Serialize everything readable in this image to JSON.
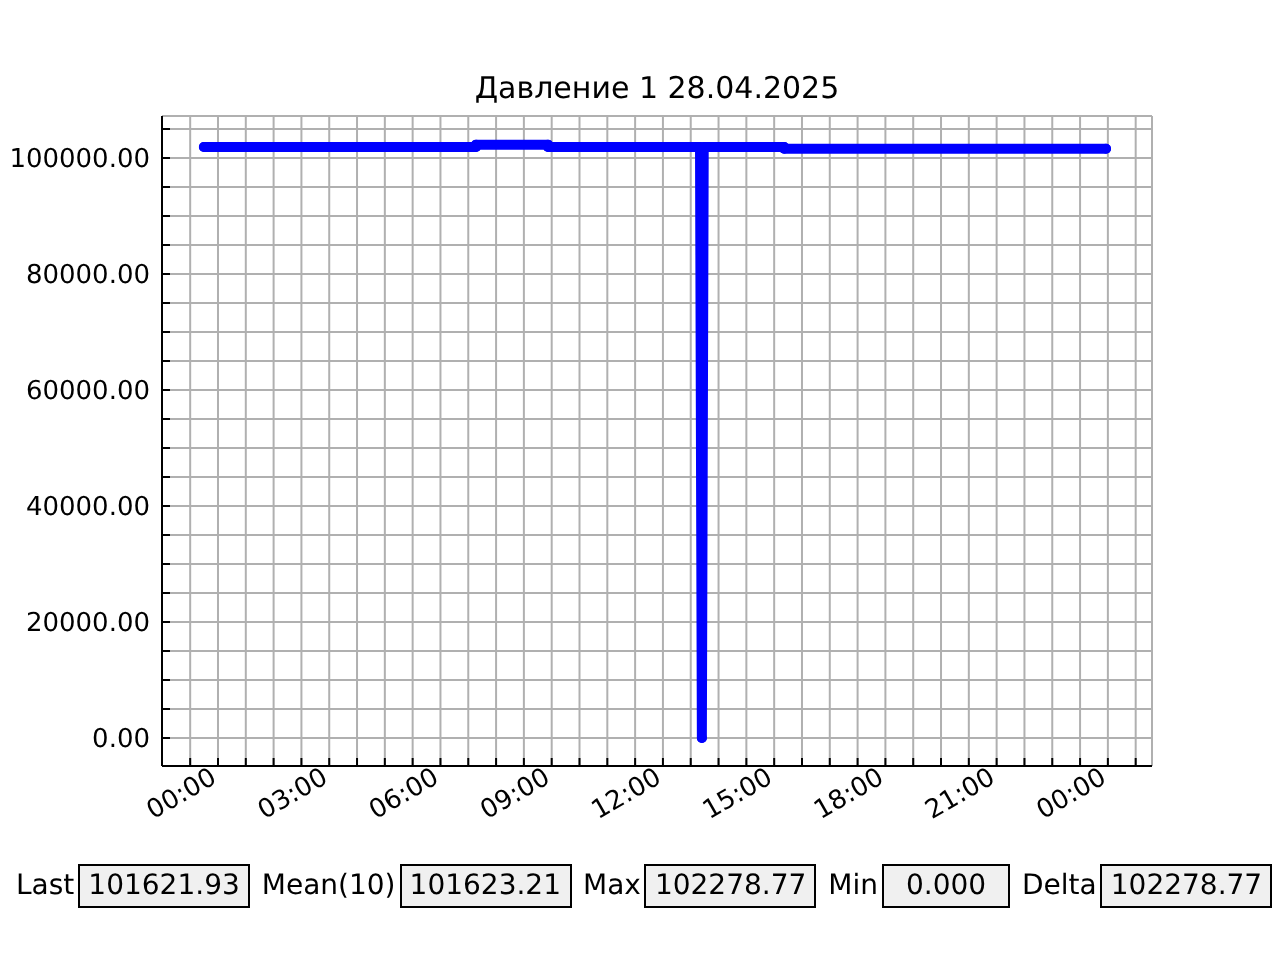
{
  "chart_data": {
    "type": "line",
    "title": "Давление 1 28.04.2025",
    "x": [
      -0.38,
      6.96,
      6.96,
      8.9,
      8.9,
      13.0,
      13.05,
      13.1,
      15.27,
      15.27,
      23.95
    ],
    "series": [
      {
        "color": "#0000ff",
        "values": [
          101900,
          101900,
          102300,
          102300,
          101900,
          101900,
          0,
          101900,
          101900,
          101600,
          101600
        ]
      }
    ],
    "xlim": [
      -1.51,
      25.19
    ],
    "xticks": [
      {
        "value": -0.75,
        "label": null
      },
      {
        "value": 0,
        "label": "00:00"
      },
      {
        "value": 0.75,
        "label": null
      },
      {
        "value": 1.5,
        "label": null
      },
      {
        "value": 2.25,
        "label": null
      },
      {
        "value": 3,
        "label": "03:00"
      },
      {
        "value": 3.75,
        "label": null
      },
      {
        "value": 4.5,
        "label": null
      },
      {
        "value": 5.25,
        "label": null
      },
      {
        "value": 6,
        "label": "06:00"
      },
      {
        "value": 6.75,
        "label": null
      },
      {
        "value": 7.5,
        "label": null
      },
      {
        "value": 8.25,
        "label": null
      },
      {
        "value": 9,
        "label": "09:00"
      },
      {
        "value": 9.75,
        "label": null
      },
      {
        "value": 10.5,
        "label": null
      },
      {
        "value": 11.25,
        "label": null
      },
      {
        "value": 12,
        "label": "12:00"
      },
      {
        "value": 12.75,
        "label": null
      },
      {
        "value": 13.5,
        "label": null
      },
      {
        "value": 14.25,
        "label": null
      },
      {
        "value": 15,
        "label": "15:00"
      },
      {
        "value": 15.75,
        "label": null
      },
      {
        "value": 16.5,
        "label": null
      },
      {
        "value": 17.25,
        "label": null
      },
      {
        "value": 18,
        "label": "18:00"
      },
      {
        "value": 18.75,
        "label": null
      },
      {
        "value": 19.5,
        "label": null
      },
      {
        "value": 20.25,
        "label": null
      },
      {
        "value": 21,
        "label": "21:00"
      },
      {
        "value": 21.75,
        "label": null
      },
      {
        "value": 22.5,
        "label": null
      },
      {
        "value": 23.25,
        "label": null
      },
      {
        "value": 24,
        "label": "00:00"
      },
      {
        "value": 24.75,
        "label": null
      }
    ],
    "ylim": [
      -4830,
      107240
    ],
    "yticks": [
      {
        "value": 0,
        "label": "0.00"
      },
      {
        "value": 5000,
        "label": null
      },
      {
        "value": 10000,
        "label": null
      },
      {
        "value": 15000,
        "label": null
      },
      {
        "value": 20000,
        "label": "20000.00"
      },
      {
        "value": 25000,
        "label": null
      },
      {
        "value": 30000,
        "label": null
      },
      {
        "value": 35000,
        "label": null
      },
      {
        "value": 40000,
        "label": "40000.00"
      },
      {
        "value": 45000,
        "label": null
      },
      {
        "value": 50000,
        "label": null
      },
      {
        "value": 55000,
        "label": null
      },
      {
        "value": 60000,
        "label": "60000.00"
      },
      {
        "value": 65000,
        "label": null
      },
      {
        "value": 70000,
        "label": null
      },
      {
        "value": 75000,
        "label": null
      },
      {
        "value": 80000,
        "label": "80000.00"
      },
      {
        "value": 85000,
        "label": null
      },
      {
        "value": 90000,
        "label": null
      },
      {
        "value": 95000,
        "label": null
      },
      {
        "value": 100000,
        "label": "100000.00"
      },
      {
        "value": 105000,
        "label": null
      }
    ],
    "grid": true,
    "marker": "circle",
    "line_style": "solid",
    "annotations": [
      "Last",
      "101621.93",
      "Mean(10)",
      "101623.21",
      "Max",
      "102278.77",
      "Min",
      "0.000",
      "Delta",
      "102278.77"
    ]
  }
}
